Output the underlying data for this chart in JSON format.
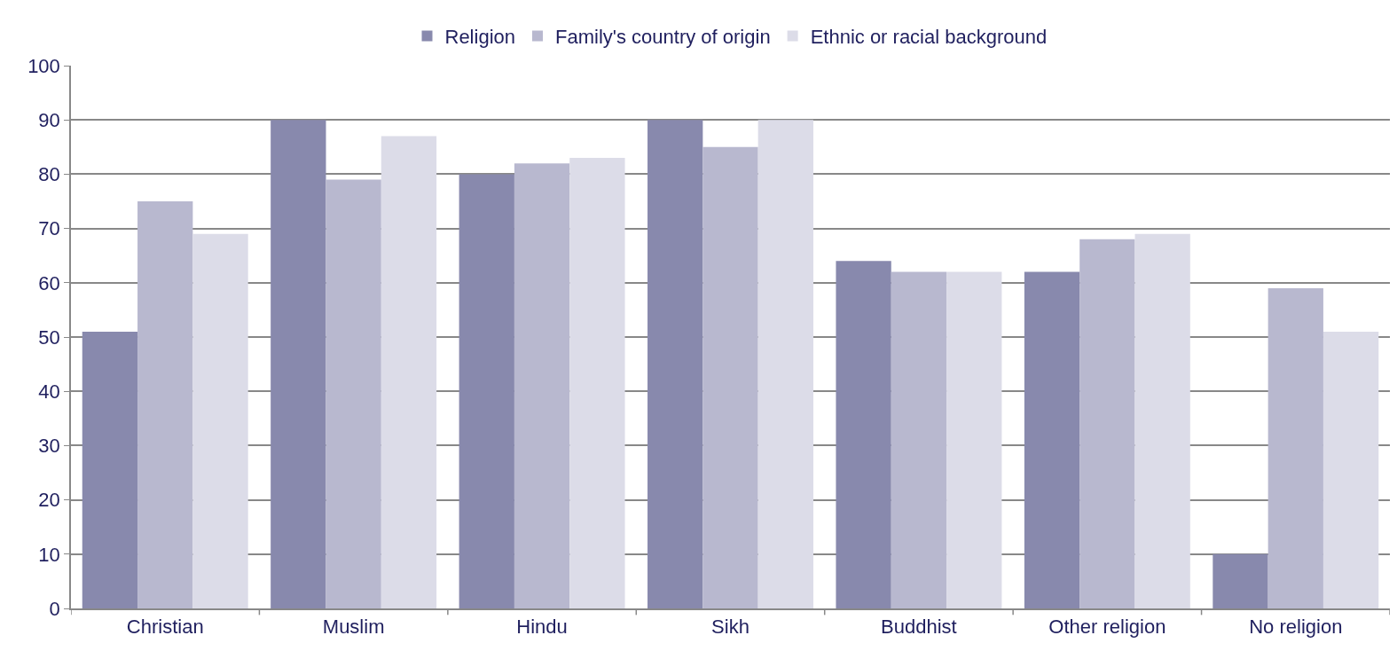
{
  "chart_data": {
    "type": "bar",
    "categories": [
      "Christian",
      "Muslim",
      "Hindu",
      "Sikh",
      "Buddhist",
      "Other religion",
      "No religion"
    ],
    "series": [
      {
        "name": "Religion",
        "color": "#8889ad",
        "values": [
          51,
          90,
          80,
          90,
          64,
          62,
          10
        ]
      },
      {
        "name": "Family's country of origin",
        "color": "#b8b8cf",
        "values": [
          75,
          79,
          82,
          85,
          62,
          68,
          59
        ]
      },
      {
        "name": "Ethnic or racial background",
        "color": "#dcdce8",
        "values": [
          69,
          87,
          83,
          90,
          62,
          69,
          51
        ]
      }
    ],
    "ylim": [
      0,
      100
    ],
    "yticks": [
      0,
      10,
      20,
      30,
      40,
      50,
      60,
      70,
      80,
      90,
      100
    ],
    "grid": "y",
    "legend": "top"
  }
}
